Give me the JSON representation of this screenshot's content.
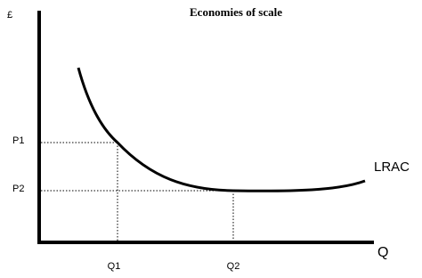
{
  "title": "Economies of scale",
  "axes": {
    "y_label": "£",
    "x_label": "Q"
  },
  "prices": [
    "P1",
    "P2"
  ],
  "quantities": [
    "Q1",
    "Q2"
  ],
  "curve": {
    "label": "LRAC"
  }
}
